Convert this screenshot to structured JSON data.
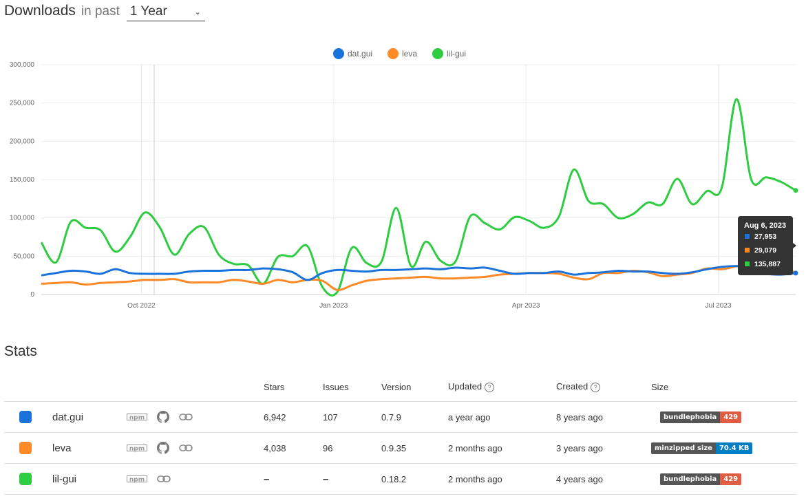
{
  "header": {
    "title": "Downloads",
    "subtitle": "in past",
    "period": "1 Year"
  },
  "colors": {
    "dat_gui": "#1a73db",
    "leva": "#fd8a26",
    "lil_gui": "#2ecc40"
  },
  "chart_data": {
    "type": "line",
    "title": "",
    "xlabel": "",
    "ylabel": "",
    "ylim": [
      0,
      300000
    ],
    "yticks": [
      "0",
      "50,000",
      "100,000",
      "150,000",
      "200,000",
      "250,000",
      "300,000"
    ],
    "xticks": [
      "Oct 2022",
      "Jan 2023",
      "Apr 2023",
      "Jul 2023"
    ],
    "x": [
      "Aug 14 2022",
      "Aug 21",
      "Aug 28",
      "Sep 4",
      "Sep 11",
      "Sep 18",
      "Sep 25",
      "Oct 2",
      "Oct 9",
      "Oct 16",
      "Oct 23",
      "Oct 30",
      "Nov 6",
      "Nov 13",
      "Nov 20",
      "Nov 27",
      "Dec 4",
      "Dec 11",
      "Dec 18",
      "Dec 25",
      "Jan 1 2023",
      "Jan 8",
      "Jan 15",
      "Jan 22",
      "Jan 29",
      "Feb 5",
      "Feb 12",
      "Feb 19",
      "Feb 26",
      "Mar 5",
      "Mar 12",
      "Mar 19",
      "Mar 26",
      "Apr 2",
      "Apr 9",
      "Apr 16",
      "Apr 23",
      "Apr 30",
      "May 7",
      "May 14",
      "May 21",
      "May 28",
      "Jun 4",
      "Jun 11",
      "Jun 18",
      "Jun 25",
      "Jul 2",
      "Jul 9",
      "Jul 16",
      "Jul 23",
      "Jul 30",
      "Aug 6 2023"
    ],
    "series": [
      {
        "name": "dat.gui",
        "values": [
          25000,
          28000,
          31000,
          30000,
          27000,
          33000,
          28000,
          27000,
          27000,
          27000,
          30000,
          31000,
          31000,
          32000,
          32000,
          34000,
          33000,
          29000,
          19000,
          28000,
          32000,
          31000,
          30000,
          32000,
          32000,
          33000,
          34000,
          33000,
          35000,
          34000,
          35000,
          31000,
          27000,
          28000,
          28000,
          30000,
          26000,
          28000,
          29000,
          31000,
          30000,
          30000,
          28000,
          27000,
          29000,
          33000,
          36000,
          37000,
          33000,
          27000,
          26000,
          27953
        ]
      },
      {
        "name": "leva",
        "values": [
          14000,
          15000,
          16000,
          13000,
          15000,
          16000,
          17000,
          19000,
          19000,
          20000,
          16000,
          16000,
          16000,
          19000,
          17000,
          14000,
          19000,
          16000,
          19000,
          18000,
          6000,
          12000,
          18000,
          20000,
          21000,
          22000,
          23000,
          21000,
          21000,
          22000,
          23000,
          26000,
          27000,
          28000,
          28000,
          27000,
          22000,
          20000,
          28000,
          28000,
          31000,
          29000,
          24000,
          26000,
          28000,
          34000,
          33000,
          37000,
          42000,
          38000,
          33000,
          29079
        ]
      },
      {
        "name": "lil-gui",
        "values": [
          68000,
          42000,
          95000,
          87000,
          84000,
          56000,
          75000,
          107000,
          88000,
          52000,
          79000,
          88000,
          52000,
          40000,
          38000,
          14000,
          49000,
          50000,
          63000,
          10000,
          3000,
          61000,
          41000,
          43000,
          113000,
          37000,
          69000,
          44000,
          43000,
          102000,
          93000,
          85000,
          101000,
          96000,
          87000,
          102000,
          163000,
          122000,
          118000,
          100000,
          105000,
          120000,
          118000,
          151000,
          118000,
          135000,
          139000,
          255000,
          150000,
          153000,
          147000,
          135887
        ]
      }
    ],
    "tooltip": {
      "date": "Aug 6, 2023",
      "values": [
        "27,953",
        "29,079",
        "135,887"
      ]
    }
  },
  "stats": {
    "title": "Stats",
    "columns": [
      "Stars",
      "Issues",
      "Version",
      "Updated",
      "Created",
      "Size"
    ],
    "rows": [
      {
        "name": "dat.gui",
        "stars": "6,942",
        "issues": "107",
        "version": "0.7.9",
        "updated": "a year ago",
        "created": "8 years ago",
        "badge_left": "bundlephobia",
        "badge_right": "429",
        "badge_color": "#e05d44",
        "npm": "npm"
      },
      {
        "name": "leva",
        "stars": "4,038",
        "issues": "96",
        "version": "0.9.35",
        "updated": "2 months ago",
        "created": "3 years ago",
        "badge_left": "minzipped size",
        "badge_right": "70.4 KB",
        "badge_color": "#007ec6",
        "npm": "npm"
      },
      {
        "name": "lil-gui",
        "stars": "–",
        "issues": "–",
        "version": "0.18.2",
        "updated": "2 months ago",
        "created": "4 years ago",
        "badge_left": "bundlephobia",
        "badge_right": "429",
        "badge_color": "#e05d44",
        "npm": "npm"
      }
    ]
  }
}
